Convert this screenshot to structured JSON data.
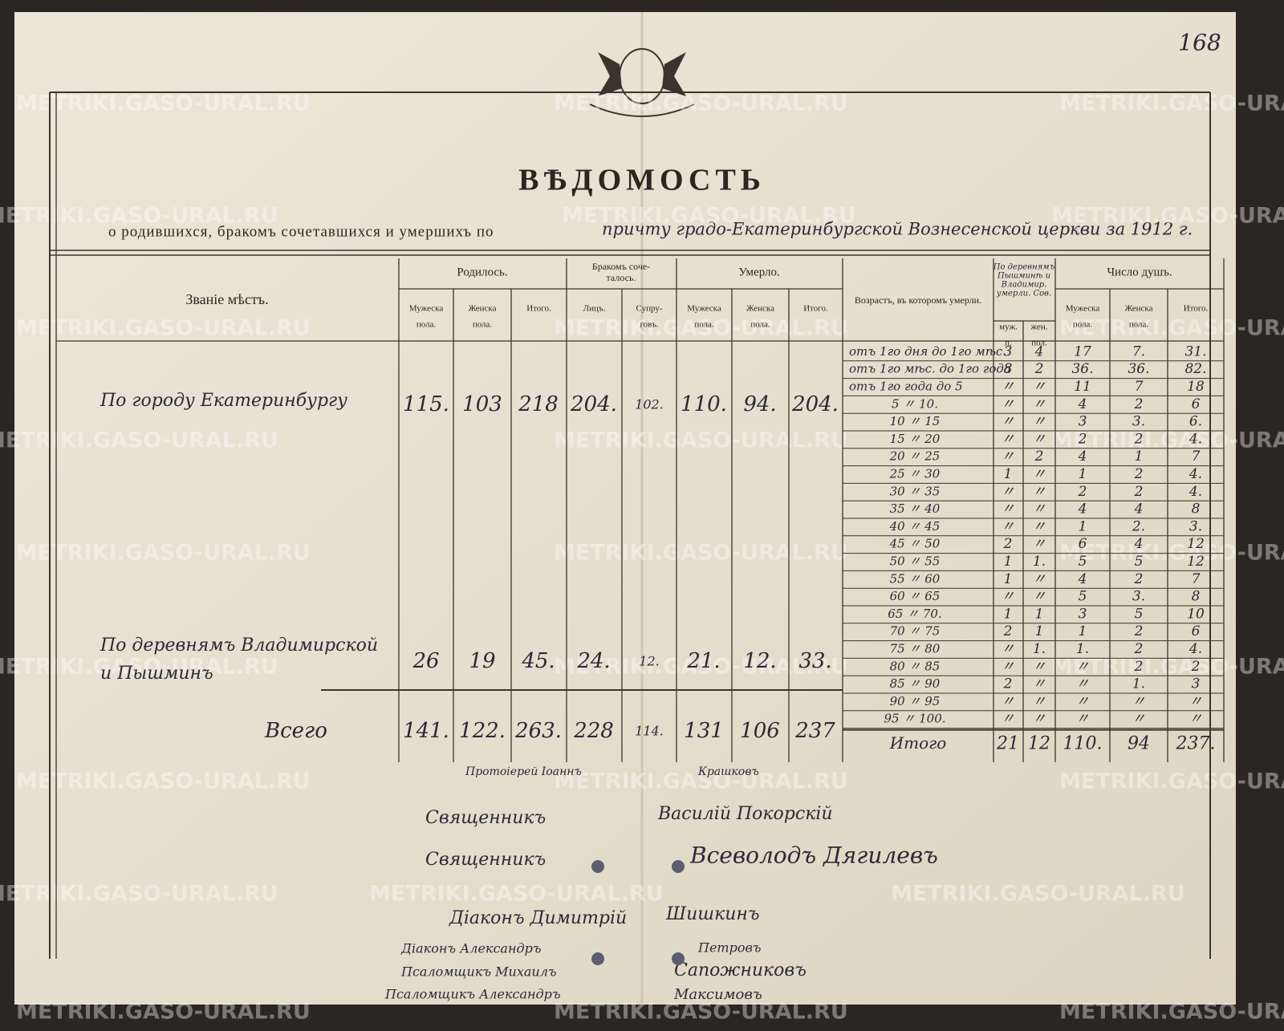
{
  "page_number": "168",
  "watermark": "METRIKI.GASO-URAL.RU",
  "title": "ВѢДОМОСТЬ",
  "subtitle": {
    "printed": "о родившихся, бракомъ сочетавшихся и умершихъ по",
    "handwritten": "причту градо-Екатеринбургской Вознесенской церкви за 1912 г."
  },
  "table": {
    "headers": {
      "place": [
        "Званіе мѣстъ."
      ],
      "born": [
        "Родилось."
      ],
      "married": [
        "Бракомъ соче-",
        "талось."
      ],
      "died": [
        "Умерло."
      ],
      "age": [
        "Возрастъ, въ которомъ умерли."
      ],
      "villages": [
        "По деревнямъ",
        "Пышминѣ и",
        "Владимир.",
        "умерли. Сов."
      ],
      "souls": [
        "Число душъ."
      ]
    },
    "subheaders": {
      "born": [
        [
          "Мужеска",
          "пола."
        ],
        [
          "Женска",
          "пола."
        ],
        [
          "Итого."
        ]
      ],
      "married": [
        [
          "Лицъ."
        ],
        [
          "Супру-",
          "говъ."
        ]
      ],
      "died": [
        [
          "Мужеска",
          "пола."
        ],
        [
          "Женска",
          "пола."
        ],
        [
          "Итого."
        ]
      ],
      "villages": [
        [
          "муж.",
          "п."
        ],
        [
          "жен.",
          "пол."
        ]
      ],
      "souls": [
        [
          "Мужеска",
          "пола."
        ],
        [
          "Женска",
          "пола."
        ],
        [
          "Итого."
        ]
      ]
    },
    "rows": [
      {
        "place": [
          "По городу Екатеринбургу"
        ],
        "values": [
          "115.",
          "103",
          "218",
          "204.",
          "102.",
          "110.",
          "94.",
          "204."
        ]
      },
      {
        "place": [
          "По деревнямъ Владимирской",
          "и Пышминъ"
        ],
        "values": [
          "26",
          "19",
          "45.",
          "24.",
          "12.",
          "21.",
          "12.",
          "33."
        ]
      }
    ],
    "total": {
      "label": "Всего",
      "values": [
        "141.",
        "122.",
        "263.",
        "228",
        "114.",
        "131",
        "106",
        "237"
      ]
    },
    "ages": [
      {
        "age": "отъ 1го дня до 1го мѣс.",
        "values": [
          "3",
          "4",
          "17",
          "7.",
          "31."
        ]
      },
      {
        "age": "отъ 1го мѣс. до 1го года",
        "values": [
          "8",
          "2",
          "36.",
          "36.",
          "82."
        ]
      },
      {
        "age": "отъ 1го года до 5",
        "values": [
          "〃",
          "〃",
          "11",
          "7",
          "18"
        ]
      },
      {
        "age": "5 〃 10.",
        "values": [
          "〃",
          "〃",
          "4",
          "2",
          "6"
        ]
      },
      {
        "age": "10 〃 15",
        "values": [
          "〃",
          "〃",
          "3",
          "3.",
          "6."
        ]
      },
      {
        "age": "15 〃 20",
        "values": [
          "〃",
          "〃",
          "2",
          "2",
          "4."
        ]
      },
      {
        "age": "20 〃 25",
        "values": [
          "〃",
          "2",
          "4",
          "1",
          "7"
        ]
      },
      {
        "age": "25 〃 30",
        "values": [
          "1",
          "〃",
          "1",
          "2",
          "4."
        ]
      },
      {
        "age": "30 〃 35",
        "values": [
          "〃",
          "〃",
          "2",
          "2",
          "4."
        ]
      },
      {
        "age": "35 〃 40",
        "values": [
          "〃",
          "〃",
          "4",
          "4",
          "8"
        ]
      },
      {
        "age": "40 〃 45",
        "values": [
          "〃",
          "〃",
          "1",
          "2.",
          "3."
        ]
      },
      {
        "age": "45 〃 50",
        "values": [
          "2",
          "〃",
          "6",
          "4",
          "12"
        ]
      },
      {
        "age": "50 〃 55",
        "values": [
          "1",
          "1.",
          "5",
          "5",
          "12"
        ]
      },
      {
        "age": "55 〃 60",
        "values": [
          "1",
          "〃",
          "4",
          "2",
          "7"
        ]
      },
      {
        "age": "60 〃 65",
        "values": [
          "〃",
          "〃",
          "5",
          "3.",
          "8"
        ]
      },
      {
        "age": "65 〃 70.",
        "values": [
          "1",
          "1",
          "3",
          "5",
          "10"
        ]
      },
      {
        "age": "70 〃 75",
        "values": [
          "2",
          "1",
          "1",
          "2",
          "6"
        ]
      },
      {
        "age": "75 〃 80",
        "values": [
          "〃",
          "1.",
          "1.",
          "2",
          "4."
        ]
      },
      {
        "age": "80 〃 85",
        "values": [
          "〃",
          "〃",
          "〃",
          "2",
          "2"
        ]
      },
      {
        "age": "85 〃 90",
        "values": [
          "2",
          "〃",
          "〃",
          "1.",
          "3"
        ]
      },
      {
        "age": "90 〃 95",
        "values": [
          "〃",
          "〃",
          "〃",
          "〃",
          "〃"
        ]
      },
      {
        "age": "95 〃 100.",
        "values": [
          "〃",
          "〃",
          "〃",
          "〃",
          "〃"
        ]
      }
    ],
    "age_total": {
      "label": "Итого",
      "values": [
        "21",
        "12",
        "110.",
        "94",
        "237."
      ]
    }
  },
  "signatures": [
    "Протоіерей Іоаннъ",
    "Крашковъ",
    "Священникъ",
    "Василій Покорскій",
    "Священникъ",
    "Всеволодъ Дягилевъ",
    "Діаконъ Димитрій",
    "Шишкинъ",
    "Діаконъ Александръ",
    "Петровъ",
    "Псаломщикъ Михаилъ",
    "Сапожниковъ",
    "Псаломщикъ Александръ",
    "Максимовъ"
  ]
}
